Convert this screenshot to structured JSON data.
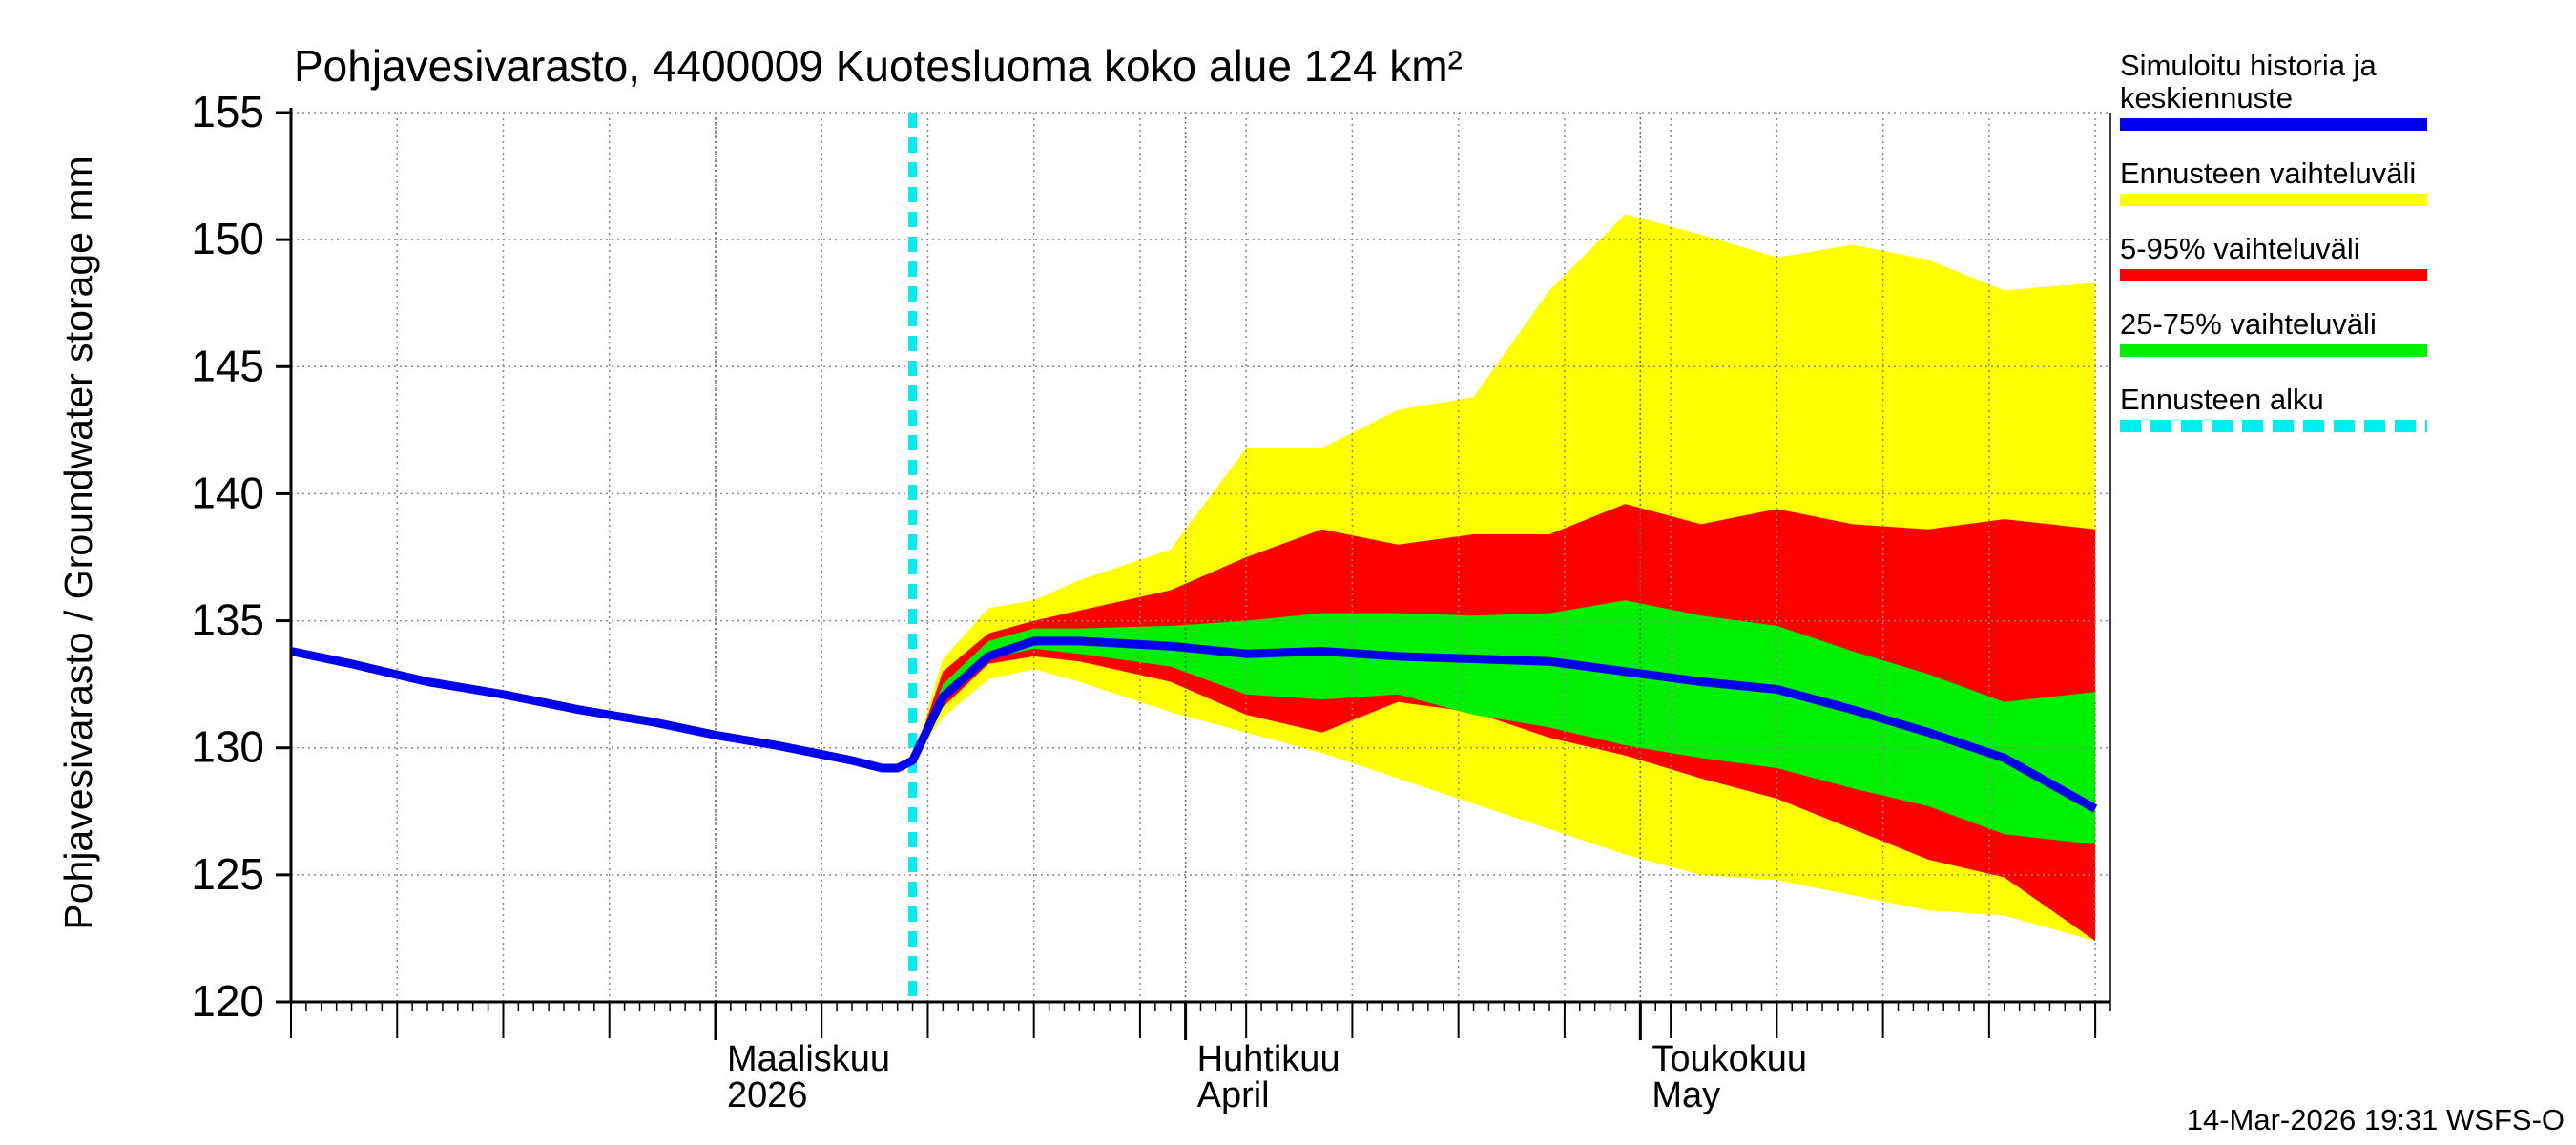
{
  "chart_data": {
    "type": "area",
    "title": "Pohjavesivarasto, 4400009 Kuotesluoma koko alue 124 km²",
    "ylabel": "Pohjavesivarasto / Groundwater storage   mm",
    "xlabel": "",
    "ylim": [
      120,
      155
    ],
    "yticks": [
      120,
      125,
      130,
      135,
      140,
      145,
      150,
      155
    ],
    "xlim": [
      "2026-02-01",
      "2026-06-01"
    ],
    "x_month_labels": [
      {
        "date": "2026-03-01",
        "line1": "Maaliskuu",
        "line2": "2026"
      },
      {
        "date": "2026-04-01",
        "line1": "Huhtikuu",
        "line2": "April"
      },
      {
        "date": "2026-05-01",
        "line1": "Toukokuu",
        "line2": "May"
      }
    ],
    "forecast_start": "2026-03-14",
    "grid": true,
    "legend_position": "right",
    "colors": {
      "history": "#0000ee",
      "range_full": "#ffff00",
      "range_5_95": "#ff0000",
      "range_25_75": "#00ee00",
      "forecast_start": "#00eeee"
    },
    "history": {
      "name": "Simuloitu historia ja keskiennuste",
      "x": [
        "2026-02-01",
        "2026-02-05",
        "2026-02-10",
        "2026-02-15",
        "2026-02-20",
        "2026-02-25",
        "2026-03-01",
        "2026-03-05",
        "2026-03-10",
        "2026-03-12",
        "2026-03-13",
        "2026-03-14"
      ],
      "y": [
        133.8,
        133.3,
        132.6,
        132.1,
        131.5,
        131.0,
        130.5,
        130.1,
        129.5,
        129.2,
        129.2,
        129.5
      ]
    },
    "forecast_x": [
      "2026-03-14",
      "2026-03-16",
      "2026-03-19",
      "2026-03-22",
      "2026-03-25",
      "2026-03-31",
      "2026-04-05",
      "2026-04-10",
      "2026-04-15",
      "2026-04-20",
      "2026-04-25",
      "2026-04-30",
      "2026-05-05",
      "2026-05-10",
      "2026-05-15",
      "2026-05-20",
      "2026-05-25",
      "2026-05-31"
    ],
    "median": [
      129.5,
      132.0,
      133.6,
      134.2,
      134.2,
      134.0,
      133.7,
      133.8,
      133.6,
      133.5,
      133.4,
      133.0,
      132.6,
      132.3,
      131.5,
      130.6,
      129.6,
      127.6
    ],
    "range_full": {
      "name": "Ennusteen vaihteluväli",
      "upper": [
        129.5,
        133.5,
        135.5,
        135.8,
        136.6,
        137.8,
        141.8,
        141.8,
        143.3,
        143.8,
        148.0,
        151.0,
        150.2,
        149.3,
        149.8,
        149.2,
        148.0,
        148.3
      ],
      "lower": [
        129.5,
        131.2,
        132.7,
        133.1,
        132.6,
        131.4,
        130.6,
        129.8,
        128.8,
        127.8,
        126.8,
        125.8,
        125.0,
        124.8,
        124.2,
        123.6,
        123.4,
        122.4
      ]
    },
    "range_5_95": {
      "name": "5-95% vaihteluväli",
      "upper": [
        129.5,
        133.0,
        134.5,
        135.0,
        135.4,
        136.2,
        137.5,
        138.6,
        138.0,
        138.4,
        138.4,
        139.6,
        138.8,
        139.4,
        138.8,
        138.6,
        139.0,
        138.6
      ],
      "lower": [
        129.5,
        131.6,
        133.3,
        133.6,
        133.4,
        132.6,
        131.3,
        130.6,
        131.8,
        131.4,
        130.4,
        129.7,
        128.8,
        128.0,
        126.8,
        125.6,
        124.9,
        122.4
      ]
    },
    "range_25_75": {
      "name": "25-75% vaihteluväli",
      "upper": [
        129.5,
        132.5,
        134.2,
        134.7,
        134.7,
        134.8,
        135.0,
        135.3,
        135.3,
        135.2,
        135.3,
        135.8,
        135.2,
        134.8,
        133.8,
        132.9,
        131.8,
        132.2
      ],
      "lower": [
        129.5,
        131.8,
        133.5,
        133.9,
        133.7,
        133.2,
        132.1,
        131.9,
        132.1,
        131.3,
        130.8,
        130.1,
        129.6,
        129.2,
        128.4,
        127.7,
        126.6,
        126.2
      ]
    }
  },
  "legend": {
    "items": [
      {
        "label": "Simuloitu historia ja keskiennuste",
        "color": "#0000ee",
        "style": "solid"
      },
      {
        "label": "Ennusteen vaihteluväli",
        "color": "#ffff00",
        "style": "solid"
      },
      {
        "label": "5-95% vaihteluväli",
        "color": "#ff0000",
        "style": "solid"
      },
      {
        "label": "25-75% vaihteluväli",
        "color": "#00ee00",
        "style": "solid"
      },
      {
        "label": "Ennusteen alku",
        "color": "#00eeee",
        "style": "dashed"
      }
    ]
  },
  "footer": "14-Mar-2026 19:31 WSFS-O"
}
